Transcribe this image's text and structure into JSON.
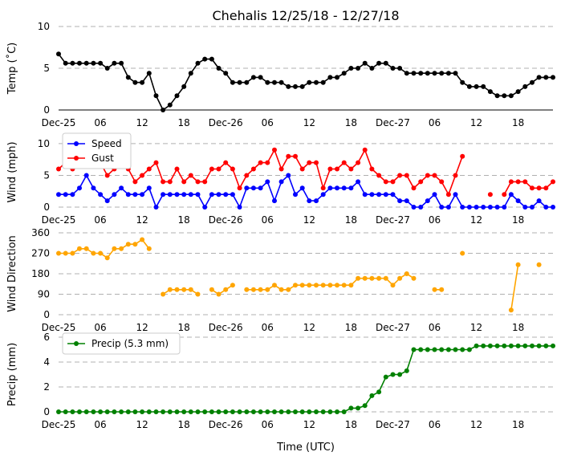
{
  "title": "Chehalis 12/25/18 - 12/27/18",
  "xlabel": "Time (UTC)",
  "colors": {
    "temp": "#000000",
    "speed": "#0000ff",
    "gust": "#ff0000",
    "dir": "#ffa500",
    "precip": "#008000",
    "grid": "#b0b0b0"
  },
  "chart_data": [
    {
      "type": "line",
      "id": "temp",
      "ylabel": "Temp (˚C)",
      "ylim": [
        0,
        10
      ],
      "yticks": [
        0,
        5,
        10
      ],
      "xlim": [
        0,
        71
      ],
      "xticks": [
        0,
        6,
        12,
        18,
        24,
        30,
        36,
        42,
        48,
        54,
        60,
        66
      ],
      "xticklabels": [
        "Dec-25",
        "06",
        "12",
        "18",
        "Dec-26",
        "06",
        "12",
        "18",
        "Dec-27",
        "06",
        "12",
        "18"
      ],
      "grid": true,
      "series": [
        {
          "values": [
            6.7,
            5.6,
            5.6,
            5.6,
            5.6,
            5.6,
            5.6,
            5.0,
            5.6,
            5.6,
            3.9,
            3.3,
            3.3,
            4.4,
            1.7,
            0.0,
            0.6,
            1.7,
            2.8,
            4.4,
            5.6,
            6.1,
            6.1,
            5.0,
            4.4,
            3.3,
            3.3,
            3.3,
            3.9,
            3.9,
            3.3,
            3.3,
            3.3,
            2.8,
            2.8,
            2.8,
            3.3,
            3.3,
            3.3,
            3.9,
            3.9,
            4.4,
            5.0,
            5.0,
            5.6,
            5.0,
            5.6,
            5.6,
            5.0,
            5.0,
            4.4,
            4.4,
            4.4,
            4.4,
            4.4,
            4.4,
            4.4,
            4.4,
            3.3,
            2.8,
            2.8,
            2.8,
            2.2,
            1.7,
            1.7,
            1.7,
            2.2,
            2.8,
            3.3,
            3.9,
            3.9,
            3.9
          ]
        }
      ]
    },
    {
      "type": "line",
      "id": "wind",
      "ylabel": "Wind (mph)",
      "ylim": [
        0,
        11
      ],
      "yticks": [
        0,
        5,
        10
      ],
      "xlim": [
        0,
        71
      ],
      "xticks": [
        0,
        6,
        12,
        18,
        24,
        30,
        36,
        42,
        48,
        54,
        60,
        66
      ],
      "xticklabels": [
        "Dec-25",
        "06",
        "12",
        "18",
        "Dec-26",
        "06",
        "12",
        "18",
        "Dec-27",
        "06",
        "12",
        "18"
      ],
      "grid": true,
      "legend": "top-left",
      "series": [
        {
          "name": "Speed",
          "values": [
            2,
            2,
            2,
            3,
            5,
            3,
            2,
            1,
            2,
            3,
            2,
            2,
            2,
            3,
            0,
            2,
            2,
            2,
            2,
            2,
            2,
            0,
            2,
            2,
            2,
            2,
            0,
            3,
            3,
            3,
            4,
            1,
            4,
            5,
            2,
            3,
            1,
            1,
            2,
            3,
            3,
            3,
            3,
            4,
            2,
            2,
            2,
            2,
            2,
            1,
            1,
            0,
            0,
            1,
            2,
            0,
            0,
            2,
            0,
            0,
            0,
            0,
            0,
            0,
            0,
            2,
            1,
            0,
            0,
            1,
            0,
            0
          ]
        },
        {
          "name": "Gust",
          "values": [
            6,
            7,
            6,
            8,
            10,
            10,
            7,
            5,
            6,
            7,
            6,
            4,
            5,
            6,
            7,
            4,
            4,
            6,
            4,
            5,
            4,
            4,
            6,
            6,
            7,
            6,
            3,
            5,
            6,
            7,
            7,
            9,
            6,
            8,
            8,
            6,
            7,
            7,
            3,
            6,
            6,
            7,
            6,
            7,
            9,
            6,
            5,
            4,
            4,
            5,
            5,
            3,
            4,
            5,
            5,
            4,
            2,
            5,
            8,
            null,
            null,
            null,
            2,
            null,
            2,
            4,
            4,
            4,
            3,
            3,
            3,
            4
          ]
        }
      ]
    },
    {
      "type": "scatter",
      "id": "dir",
      "ylabel": "Wind Direction",
      "ylim": [
        0,
        360
      ],
      "yticks": [
        0,
        90,
        180,
        270,
        360
      ],
      "xlim": [
        0,
        71
      ],
      "xticks": [
        0,
        6,
        12,
        18,
        24,
        30,
        36,
        42,
        48,
        54,
        60,
        66
      ],
      "xticklabels": [
        "Dec-25",
        "06",
        "12",
        "18",
        "Dec-26",
        "06",
        "12",
        "18",
        "Dec-27",
        "06",
        "12",
        "18"
      ],
      "grid": true,
      "series": [
        {
          "values": [
            270,
            270,
            270,
            290,
            290,
            270,
            270,
            250,
            290,
            290,
            310,
            310,
            330,
            290,
            null,
            90,
            110,
            110,
            110,
            110,
            90,
            null,
            110,
            90,
            110,
            130,
            null,
            110,
            110,
            110,
            110,
            130,
            110,
            110,
            130,
            130,
            130,
            130,
            130,
            130,
            130,
            130,
            130,
            160,
            160,
            160,
            160,
            160,
            130,
            160,
            180,
            160,
            null,
            null,
            110,
            110,
            null,
            null,
            270,
            null,
            null,
            null,
            null,
            null,
            null,
            20,
            220,
            null,
            null,
            220,
            null,
            null
          ]
        }
      ]
    },
    {
      "type": "line",
      "id": "precip",
      "ylabel": "Precip (mm)",
      "ylim": [
        0,
        6
      ],
      "yticks": [
        0,
        2,
        4,
        6
      ],
      "xlim": [
        0,
        71
      ],
      "xticks": [
        0,
        6,
        12,
        18,
        24,
        30,
        36,
        42,
        48,
        54,
        60,
        66
      ],
      "xticklabels": [
        "Dec-25",
        "06",
        "12",
        "18",
        "Dec-26",
        "06",
        "12",
        "18",
        "Dec-27",
        "06",
        "12",
        "18"
      ],
      "grid": true,
      "legend": "top-left",
      "series": [
        {
          "name": "Precip (5.3 mm)",
          "values": [
            0,
            0,
            0,
            0,
            0,
            0,
            0,
            0,
            0,
            0,
            0,
            0,
            0,
            0,
            0,
            0,
            0,
            0,
            0,
            0,
            0,
            0,
            0,
            0,
            0,
            0,
            0,
            0,
            0,
            0,
            0,
            0,
            0,
            0,
            0,
            0,
            0,
            0,
            0,
            0,
            0,
            0,
            0.3,
            0.3,
            0.5,
            1.3,
            1.6,
            2.8,
            3.0,
            3.0,
            3.3,
            5.0,
            5.0,
            5.0,
            5.0,
            5.0,
            5.0,
            5.0,
            5.0,
            5.0,
            5.3,
            5.3,
            5.3,
            5.3,
            5.3,
            5.3,
            5.3,
            5.3,
            5.3,
            5.3,
            5.3,
            5.3
          ]
        }
      ]
    }
  ]
}
